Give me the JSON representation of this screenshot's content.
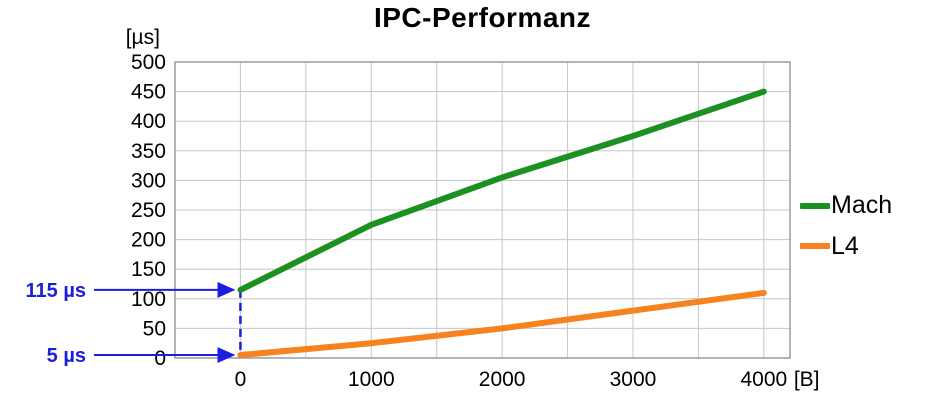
{
  "chart_data": {
    "type": "line",
    "title": "IPC-Performanz",
    "xlabel": "[B]",
    "ylabel": "[µs]",
    "x": [
      0,
      1000,
      2000,
      3000,
      4000
    ],
    "series": [
      {
        "name": "Mach",
        "color": "#1c9121",
        "values": [
          115,
          225,
          305,
          375,
          450
        ]
      },
      {
        "name": "L4",
        "color": "#f68220",
        "values": [
          5,
          25,
          50,
          80,
          110
        ]
      }
    ],
    "xlim": [
      -500,
      4200
    ],
    "ylim": [
      0,
      500
    ],
    "x_ticks": [
      0,
      1000,
      2000,
      3000,
      4000
    ],
    "y_tick_step": 50,
    "x_grid_step": 500,
    "grid": true,
    "grid_color": "#c6c6c6",
    "border_color": "#9a9a9a",
    "legend_position": "right",
    "annotation_color": "#1d1de0",
    "annotations": [
      {
        "label": "115 µs",
        "x": 0,
        "y": 115
      },
      {
        "label": "5 µs",
        "x": 0,
        "y": 5
      }
    ],
    "dashed_connector": {
      "x": 0,
      "from_y": 115,
      "to_y": 0
    }
  }
}
